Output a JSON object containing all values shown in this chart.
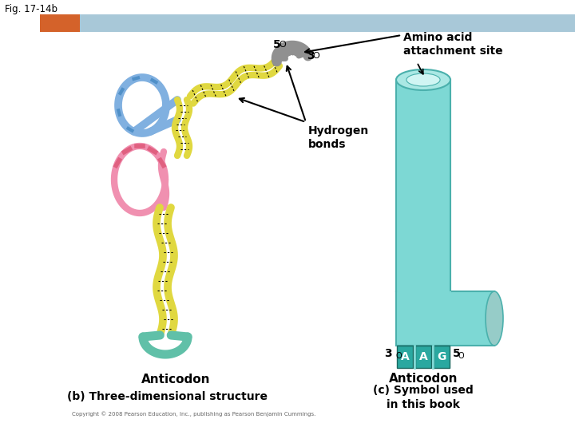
{
  "fig_label": "Fig. 17-14b",
  "background_color": "#ffffff",
  "header_bar_color": "#a8c8d8",
  "header_bar_orange": "#d4622a",
  "title_b": "(b) Three-dimensional structure",
  "title_c": "(c) Symbol used\nin this book",
  "copyright": "Copyright © 2008 Pearson Education, Inc., publishing as Pearson Benjamin Cummings.",
  "label_hydrogen": "Hydrogen\nbonds",
  "label_amino": "Amino acid\nattachment site",
  "label_anticodon_left": "Anticodon",
  "label_anticodon_right": "Anticodon",
  "anticodon_letters": [
    "A",
    "A",
    "G"
  ],
  "tRNA_body_color": "#7dd8d4",
  "tRNA_edge_color": "#4ab0ac",
  "tRNA_top_color": "#aae8e4",
  "tRNA_inner_color": "#d0f5f3",
  "tRNA_stem_color": "#2aa8a0",
  "helix_yellow": "#e0d840",
  "helix_blue": "#80b0e0",
  "helix_pink": "#f090b0",
  "helix_teal": "#60c0a8",
  "hook_gray": "#909090",
  "hook_gray_dark": "#606060"
}
